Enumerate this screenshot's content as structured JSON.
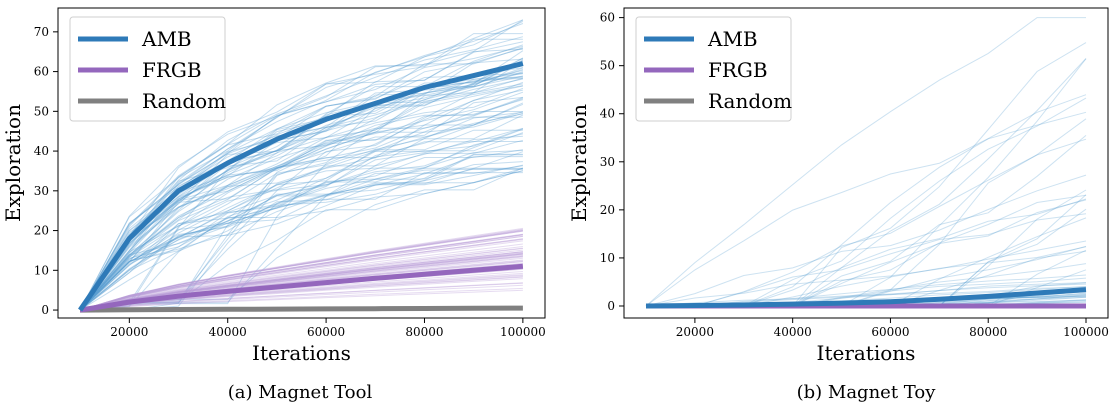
{
  "figure": {
    "panels": [
      {
        "caption": "(a) Magnet Tool"
      },
      {
        "caption": "(b) Magnet Toy"
      }
    ]
  },
  "colors": {
    "AMB": "#2e7ab8",
    "AMB_light": "#5a9fd0",
    "FRGB": "#9467bd",
    "FRGB_light": "#b69ad6",
    "Random": "#808080",
    "spine": "#000000"
  },
  "chart_data": [
    {
      "type": "line",
      "title": "",
      "xlabel": "Iterations",
      "ylabel": "Exploration",
      "xlim": [
        5500,
        104500
      ],
      "ylim": [
        -2,
        76
      ],
      "xticks": [
        20000,
        40000,
        60000,
        80000,
        100000
      ],
      "yticks": [
        0,
        10,
        20,
        30,
        40,
        50,
        60,
        70
      ],
      "legend": {
        "placement": "top-left",
        "entries": [
          "AMB",
          "FRGB",
          "Random"
        ]
      },
      "x": [
        10000,
        20000,
        30000,
        40000,
        50000,
        60000,
        70000,
        80000,
        90000,
        100000
      ],
      "series": [
        {
          "name": "AMB",
          "values": [
            0,
            18,
            30,
            37,
            43,
            48,
            52,
            56,
            59,
            62
          ]
        },
        {
          "name": "FRGB",
          "values": [
            0,
            2,
            3.5,
            4.7,
            5.8,
            6.9,
            8,
            9,
            10,
            11
          ]
        },
        {
          "name": "Random",
          "values": [
            0,
            0.1,
            0.15,
            0.2,
            0.25,
            0.3,
            0.35,
            0.4,
            0.45,
            0.5
          ]
        }
      ]
    },
    {
      "type": "line",
      "title": "",
      "xlabel": "Iterations",
      "ylabel": "Exploration",
      "xlim": [
        5500,
        104500
      ],
      "ylim": [
        -2.5,
        62
      ],
      "xticks": [
        20000,
        40000,
        60000,
        80000,
        100000
      ],
      "yticks": [
        0,
        10,
        20,
        30,
        40,
        50,
        60
      ],
      "legend": {
        "placement": "top-left",
        "entries": [
          "AMB",
          "FRGB",
          "Random"
        ]
      },
      "x": [
        10000,
        20000,
        30000,
        40000,
        50000,
        60000,
        70000,
        80000,
        90000,
        100000
      ],
      "series": [
        {
          "name": "AMB",
          "values": [
            0,
            0.1,
            0.2,
            0.4,
            0.6,
            0.9,
            1.4,
            2.0,
            2.7,
            3.4
          ]
        },
        {
          "name": "FRGB",
          "values": [
            0,
            0,
            0,
            0,
            0,
            0,
            0,
            0,
            0,
            0
          ]
        },
        {
          "name": "Random",
          "values": [
            0,
            0,
            0,
            0,
            0,
            0,
            0,
            0,
            0,
            0
          ]
        }
      ]
    }
  ]
}
